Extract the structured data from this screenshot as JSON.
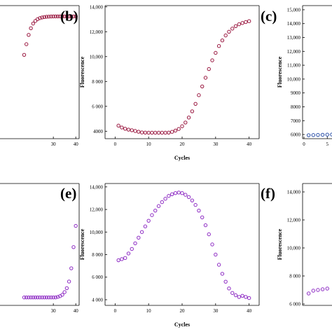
{
  "panel_labels": {
    "b": "(b)",
    "c": "(c)",
    "e": "(e)",
    "f": "(f)"
  },
  "chart_data": [
    {
      "id": "a",
      "type": "scatter",
      "xlabel": "",
      "ylabel": "",
      "xticks": [
        30,
        40
      ],
      "yticks": [],
      "xlim": [
        0,
        41.5
      ],
      "ylim": [
        3500,
        13500
      ],
      "color": "#9a1840",
      "series": [
        {
          "x": [
            17,
            18,
            19,
            20,
            21,
            22,
            23,
            24,
            25,
            26,
            27,
            28,
            29,
            30,
            31,
            32,
            33,
            34,
            35,
            36,
            37,
            38,
            39,
            40
          ],
          "values": [
            9800,
            10600,
            11300,
            11800,
            12150,
            12350,
            12480,
            12560,
            12610,
            12640,
            12660,
            12670,
            12680,
            12685,
            12690,
            12690,
            12690,
            12690,
            12690,
            12690,
            12690,
            12690,
            12690,
            12690
          ]
        }
      ]
    },
    {
      "id": "b",
      "type": "scatter",
      "xlabel": "Cycles",
      "ylabel": "Fluorescence",
      "xticks": [
        0,
        10,
        20,
        30,
        40
      ],
      "yticks": [
        4000,
        6000,
        8000,
        10000,
        12000,
        14000
      ],
      "ytick_labels": [
        "4000",
        "6 000",
        "8 000",
        "10,000",
        "12,000",
        "14,000"
      ],
      "xlim": [
        -3,
        43
      ],
      "ylim": [
        3400,
        14100
      ],
      "color": "#9a1840",
      "series": [
        {
          "x": [
            1,
            2,
            3,
            4,
            5,
            6,
            7,
            8,
            9,
            10,
            11,
            12,
            13,
            14,
            15,
            16,
            17,
            18,
            19,
            20,
            21,
            22,
            23,
            24,
            25,
            26,
            27,
            28,
            29,
            30,
            31,
            32,
            33,
            34,
            35,
            36,
            37,
            38,
            39,
            40
          ],
          "values": [
            4450,
            4300,
            4200,
            4130,
            4080,
            4020,
            3960,
            3900,
            3890,
            3880,
            3880,
            3880,
            3880,
            3880,
            3880,
            3890,
            3950,
            4050,
            4180,
            4400,
            4700,
            5100,
            5600,
            6200,
            6900,
            7600,
            8300,
            9000,
            9700,
            10300,
            10850,
            11300,
            11700,
            12000,
            12250,
            12450,
            12600,
            12700,
            12780,
            12850
          ]
        }
      ]
    },
    {
      "id": "c",
      "type": "scatter",
      "xlabel": "",
      "ylabel": "Fluorescence",
      "xticks": [
        0,
        5
      ],
      "yticks": [
        6000,
        7000,
        8000,
        9000,
        10000,
        11000,
        12000,
        13000,
        14000,
        15000
      ],
      "ytick_labels": [
        "6000",
        "7000",
        "8000",
        "9000",
        "10,000",
        "11,000",
        "12,000",
        "13,000",
        "14,000",
        "15,000"
      ],
      "xlim": [
        -0.3,
        40
      ],
      "ylim": [
        5700,
        15300
      ],
      "color": "#2b50a8",
      "series": [
        {
          "x": [
            1,
            2,
            3,
            4,
            5,
            6,
            7,
            8,
            9,
            10
          ],
          "values": [
            5950,
            5960,
            5970,
            5980,
            5990,
            6000,
            6010,
            6020,
            6040,
            6060
          ]
        }
      ]
    },
    {
      "id": "d",
      "type": "scatter",
      "xlabel": "",
      "ylabel": "",
      "xticks": [
        30,
        40
      ],
      "yticks": [],
      "xlim": [
        0,
        41.5
      ],
      "ylim": [
        3600,
        8200
      ],
      "color": "#8e2cc4",
      "series": [
        {
          "x": [
            17,
            18,
            19,
            20,
            21,
            22,
            23,
            24,
            25,
            26,
            27,
            28,
            29,
            30,
            31,
            32,
            33,
            34,
            35,
            36,
            37,
            38,
            39,
            40
          ],
          "values": [
            3900,
            3900,
            3900,
            3900,
            3900,
            3900,
            3900,
            3900,
            3900,
            3900,
            3900,
            3900,
            3900,
            3900,
            3900,
            3920,
            3950,
            4000,
            4100,
            4250,
            4500,
            5000,
            5800,
            6600
          ]
        }
      ]
    },
    {
      "id": "e",
      "type": "scatter",
      "xlabel": "Cycles",
      "ylabel": "Fluorescence",
      "xticks": [
        0,
        10,
        20,
        30,
        40
      ],
      "yticks": [
        4000,
        6000,
        8000,
        10000,
        12000,
        14000
      ],
      "ytick_labels": [
        "4 000",
        "6 000",
        "8 000",
        "10,000",
        "12,000",
        "14,000"
      ],
      "xlim": [
        -3,
        43
      ],
      "ylim": [
        3500,
        14300
      ],
      "color": "#8e2cc4",
      "series": [
        {
          "x": [
            1,
            2,
            3,
            4,
            5,
            6,
            7,
            8,
            9,
            10,
            11,
            12,
            13,
            14,
            15,
            16,
            17,
            18,
            19,
            20,
            21,
            22,
            23,
            24,
            25,
            26,
            27,
            28,
            29,
            30,
            31,
            32,
            33,
            34,
            35,
            36,
            37,
            38,
            39,
            40
          ],
          "values": [
            7500,
            7600,
            7700,
            8100,
            8500,
            9000,
            9500,
            10000,
            10500,
            11000,
            11500,
            11900,
            12300,
            12650,
            12950,
            13200,
            13350,
            13450,
            13500,
            13450,
            13300,
            13100,
            12800,
            12400,
            11900,
            11300,
            10600,
            9800,
            8900,
            8000,
            7100,
            6300,
            5600,
            5000,
            4600,
            4400,
            4250,
            4350,
            4250,
            4150
          ]
        }
      ]
    },
    {
      "id": "f",
      "type": "scatter",
      "xlabel": "",
      "ylabel": "Fluorescence",
      "xticks": [],
      "yticks": [
        6000,
        8000,
        10000,
        12000,
        14000
      ],
      "ytick_labels": [
        "6 000",
        "8 000",
        "10,000",
        "12,000",
        "14,000"
      ],
      "xlim": [
        -0.3,
        40
      ],
      "ylim": [
        5900,
        14600
      ],
      "color": "#8e2cc4",
      "series": [
        {
          "x": [
            1,
            2,
            3,
            4,
            5
          ],
          "values": [
            6750,
            6950,
            7000,
            7050,
            7100
          ]
        }
      ]
    }
  ]
}
